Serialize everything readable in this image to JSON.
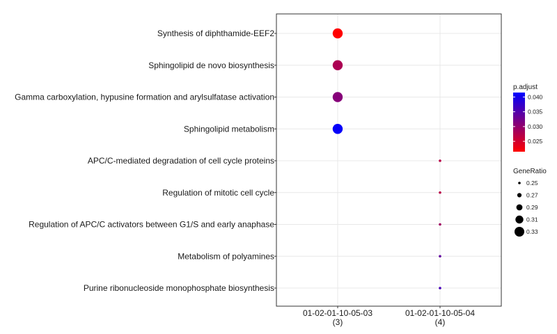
{
  "chart_data": {
    "type": "scatter",
    "x_categories": [
      {
        "name": "01-02-01-10-05-03",
        "count": "(3)"
      },
      {
        "name": "01-02-01-10-05-04",
        "count": "(4)"
      }
    ],
    "y_categories": [
      "Synthesis of diphthamide-EEF2",
      "Sphingolipid de novo biosynthesis",
      "Gamma carboxylation, hypusine formation and arylsulfatase activation",
      "Sphingolipid metabolism",
      "APC/C-mediated degradation of cell cycle proteins",
      "Regulation of mitotic cell cycle",
      "Regulation of APC/C activators between G1/S and early anaphase",
      "Metabolism of polyamines",
      "Purine ribonucleoside monophosphate biosynthesis"
    ],
    "points": [
      {
        "x": "01-02-01-10-05-03",
        "y": "Synthesis of diphthamide-EEF2",
        "gene_ratio": 0.333,
        "p_adjust": 0.021
      },
      {
        "x": "01-02-01-10-05-03",
        "y": "Sphingolipid de novo biosynthesis",
        "gene_ratio": 0.333,
        "p_adjust": 0.028
      },
      {
        "x": "01-02-01-10-05-03",
        "y": "Gamma carboxylation, hypusine formation and arylsulfatase activation",
        "gene_ratio": 0.333,
        "p_adjust": 0.031
      },
      {
        "x": "01-02-01-10-05-03",
        "y": "Sphingolipid metabolism",
        "gene_ratio": 0.333,
        "p_adjust": 0.041
      },
      {
        "x": "01-02-01-10-05-04",
        "y": "APC/C-mediated degradation of cell cycle proteins",
        "gene_ratio": 0.25,
        "p_adjust": 0.027
      },
      {
        "x": "01-02-01-10-05-04",
        "y": "Regulation of mitotic cell cycle",
        "gene_ratio": 0.25,
        "p_adjust": 0.027
      },
      {
        "x": "01-02-01-10-05-04",
        "y": "Regulation of APC/C activators between G1/S and early anaphase",
        "gene_ratio": 0.25,
        "p_adjust": 0.029
      },
      {
        "x": "01-02-01-10-05-04",
        "y": "Metabolism of polyamines",
        "gene_ratio": 0.25,
        "p_adjust": 0.034
      },
      {
        "x": "01-02-01-10-05-04",
        "y": "Purine ribonucleoside monophosphate biosynthesis",
        "gene_ratio": 0.25,
        "p_adjust": 0.036
      }
    ],
    "color_legend": {
      "title": "p.adjust",
      "range": [
        0.0215,
        0.0415
      ],
      "ticks": [
        "0.025",
        "0.030",
        "0.035",
        "0.040"
      ],
      "low_color": "#ff0000",
      "high_color": "#0000ff"
    },
    "size_legend": {
      "title": "GeneRatio",
      "ticks": [
        "0.25",
        "0.27",
        "0.29",
        "0.31",
        "0.33"
      ]
    },
    "grid": true,
    "legend_position": "right"
  }
}
